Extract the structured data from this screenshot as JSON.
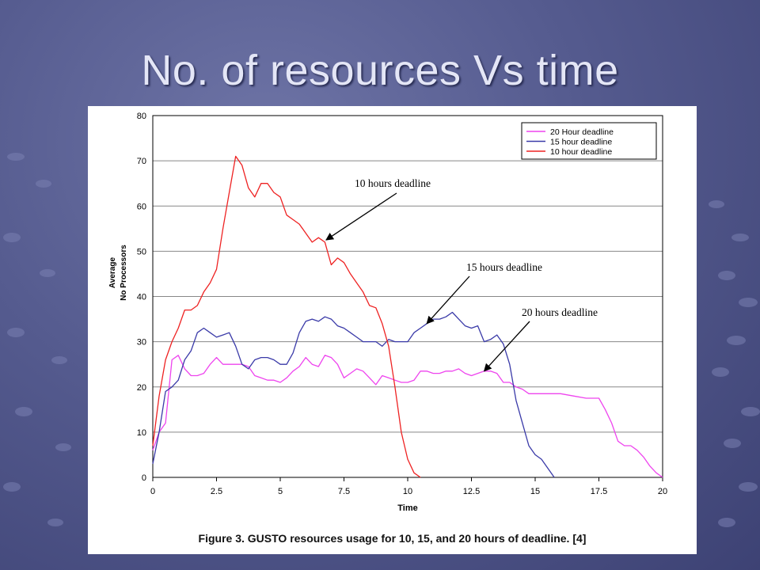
{
  "slide": {
    "title": "No. of resources Vs time",
    "caption": "Figure 3.  GUSTO resources usage for 10, 15, and 20 hours of deadline. [4]"
  },
  "chart_data": {
    "type": "line",
    "xlabel": "Time",
    "ylabel_line1": "Average",
    "ylabel_line2": "No Processors",
    "xlim": [
      0,
      20
    ],
    "ylim": [
      0,
      80
    ],
    "x_ticks": [
      "0",
      "2.5",
      "5",
      "7.5",
      "10",
      "12.5",
      "15",
      "17.5",
      "20"
    ],
    "y_ticks": [
      "0",
      "10",
      "20",
      "30",
      "40",
      "50",
      "60",
      "70",
      "80"
    ],
    "grid": true,
    "legend_position": "top-right",
    "series": [
      {
        "name": "20 Hour deadline",
        "color": "#ee44ee",
        "points": [
          [
            0,
            6
          ],
          [
            0.25,
            10
          ],
          [
            0.5,
            12
          ],
          [
            0.75,
            26
          ],
          [
            1,
            27
          ],
          [
            1.25,
            24
          ],
          [
            1.5,
            22.5
          ],
          [
            1.75,
            22.5
          ],
          [
            2,
            23
          ],
          [
            2.25,
            25
          ],
          [
            2.5,
            26.5
          ],
          [
            2.75,
            25
          ],
          [
            3,
            25
          ],
          [
            3.25,
            25
          ],
          [
            3.5,
            25
          ],
          [
            3.75,
            24.5
          ],
          [
            4,
            22.5
          ],
          [
            4.25,
            22
          ],
          [
            4.5,
            21.5
          ],
          [
            4.75,
            21.5
          ],
          [
            5,
            21
          ],
          [
            5.25,
            22
          ],
          [
            5.5,
            23.5
          ],
          [
            5.75,
            24.5
          ],
          [
            6,
            26.5
          ],
          [
            6.25,
            25
          ],
          [
            6.5,
            24.5
          ],
          [
            6.75,
            27
          ],
          [
            7,
            26.5
          ],
          [
            7.25,
            25
          ],
          [
            7.5,
            22
          ],
          [
            7.75,
            23
          ],
          [
            8,
            24
          ],
          [
            8.25,
            23.5
          ],
          [
            8.5,
            22
          ],
          [
            8.75,
            20.5
          ],
          [
            9,
            22.5
          ],
          [
            9.25,
            22
          ],
          [
            9.5,
            21.5
          ],
          [
            9.75,
            21
          ],
          [
            10,
            21
          ],
          [
            10.25,
            21.5
          ],
          [
            10.5,
            23.5
          ],
          [
            10.75,
            23.5
          ],
          [
            11,
            23
          ],
          [
            11.25,
            23
          ],
          [
            11.5,
            23.5
          ],
          [
            11.75,
            23.5
          ],
          [
            12,
            24
          ],
          [
            12.25,
            23
          ],
          [
            12.5,
            22.5
          ],
          [
            12.75,
            23
          ],
          [
            13,
            23.5
          ],
          [
            13.25,
            23.5
          ],
          [
            13.5,
            23
          ],
          [
            13.75,
            21
          ],
          [
            14,
            21
          ],
          [
            14.25,
            20
          ],
          [
            14.5,
            19.5
          ],
          [
            14.75,
            18.5
          ],
          [
            15,
            18.5
          ],
          [
            15.5,
            18.5
          ],
          [
            16,
            18.5
          ],
          [
            16.5,
            18
          ],
          [
            17,
            17.5
          ],
          [
            17.5,
            17.5
          ],
          [
            17.75,
            15
          ],
          [
            18,
            12
          ],
          [
            18.25,
            8
          ],
          [
            18.5,
            7
          ],
          [
            18.75,
            7
          ],
          [
            19,
            6
          ],
          [
            19.25,
            4.5
          ],
          [
            19.5,
            2.5
          ],
          [
            19.75,
            1
          ],
          [
            20,
            0
          ]
        ]
      },
      {
        "name": "15 hour deadline",
        "color": "#3a3aa8",
        "points": [
          [
            0,
            3
          ],
          [
            0.25,
            10
          ],
          [
            0.5,
            19
          ],
          [
            0.75,
            20
          ],
          [
            1,
            21.5
          ],
          [
            1.25,
            26
          ],
          [
            1.5,
            28
          ],
          [
            1.75,
            32
          ],
          [
            2,
            33
          ],
          [
            2.25,
            32
          ],
          [
            2.5,
            31
          ],
          [
            2.75,
            31.5
          ],
          [
            3,
            32
          ],
          [
            3.25,
            29
          ],
          [
            3.5,
            25
          ],
          [
            3.75,
            24
          ],
          [
            4,
            26
          ],
          [
            4.25,
            26.5
          ],
          [
            4.5,
            26.5
          ],
          [
            4.75,
            26
          ],
          [
            5,
            25
          ],
          [
            5.25,
            25
          ],
          [
            5.5,
            27.5
          ],
          [
            5.75,
            32
          ],
          [
            6,
            34.5
          ],
          [
            6.25,
            35
          ],
          [
            6.5,
            34.5
          ],
          [
            6.75,
            35.5
          ],
          [
            7,
            35
          ],
          [
            7.25,
            33.5
          ],
          [
            7.5,
            33
          ],
          [
            7.75,
            32
          ],
          [
            8,
            31
          ],
          [
            8.25,
            30
          ],
          [
            8.5,
            30
          ],
          [
            8.75,
            30
          ],
          [
            9,
            29
          ],
          [
            9.25,
            30.5
          ],
          [
            9.5,
            30
          ],
          [
            9.75,
            30
          ],
          [
            10,
            30
          ],
          [
            10.25,
            32
          ],
          [
            10.5,
            33
          ],
          [
            10.75,
            34
          ],
          [
            11,
            35
          ],
          [
            11.25,
            35
          ],
          [
            11.5,
            35.5
          ],
          [
            11.75,
            36.5
          ],
          [
            12,
            35
          ],
          [
            12.25,
            33.5
          ],
          [
            12.5,
            33
          ],
          [
            12.75,
            33.5
          ],
          [
            13,
            30
          ],
          [
            13.25,
            30.5
          ],
          [
            13.5,
            31.5
          ],
          [
            13.75,
            29.5
          ],
          [
            14,
            25
          ],
          [
            14.25,
            17
          ],
          [
            14.5,
            12
          ],
          [
            14.75,
            7
          ],
          [
            15,
            5
          ],
          [
            15.25,
            4
          ],
          [
            15.5,
            2
          ],
          [
            15.75,
            0
          ]
        ]
      },
      {
        "name": "10 hour deadline",
        "color": "#ee2222",
        "points": [
          [
            0,
            7
          ],
          [
            0.25,
            18
          ],
          [
            0.5,
            26
          ],
          [
            0.75,
            30
          ],
          [
            1,
            33
          ],
          [
            1.25,
            37
          ],
          [
            1.5,
            37
          ],
          [
            1.75,
            38
          ],
          [
            2,
            41
          ],
          [
            2.25,
            43
          ],
          [
            2.5,
            46
          ],
          [
            2.75,
            55
          ],
          [
            3,
            63
          ],
          [
            3.25,
            71
          ],
          [
            3.5,
            69
          ],
          [
            3.75,
            64
          ],
          [
            4,
            62
          ],
          [
            4.25,
            65
          ],
          [
            4.5,
            65
          ],
          [
            4.75,
            63
          ],
          [
            5,
            62
          ],
          [
            5.25,
            58
          ],
          [
            5.5,
            57
          ],
          [
            5.75,
            56
          ],
          [
            6,
            54
          ],
          [
            6.25,
            52
          ],
          [
            6.5,
            53
          ],
          [
            6.75,
            52
          ],
          [
            7,
            47
          ],
          [
            7.25,
            48.5
          ],
          [
            7.5,
            47.5
          ],
          [
            7.75,
            45
          ],
          [
            8,
            43
          ],
          [
            8.25,
            41
          ],
          [
            8.5,
            38
          ],
          [
            8.75,
            37.5
          ],
          [
            9,
            34
          ],
          [
            9.25,
            29
          ],
          [
            9.5,
            20
          ],
          [
            9.75,
            10
          ],
          [
            10,
            4
          ],
          [
            10.25,
            1
          ],
          [
            10.5,
            0
          ]
        ]
      }
    ],
    "annotations": [
      {
        "text": "10 hours deadline",
        "arrow_to": [
          6.8,
          52.5
        ]
      },
      {
        "text": "15 hours deadline",
        "arrow_to": [
          10.75,
          34
        ]
      },
      {
        "text": "20 hours deadline",
        "arrow_to": [
          13,
          23.5
        ]
      }
    ]
  }
}
